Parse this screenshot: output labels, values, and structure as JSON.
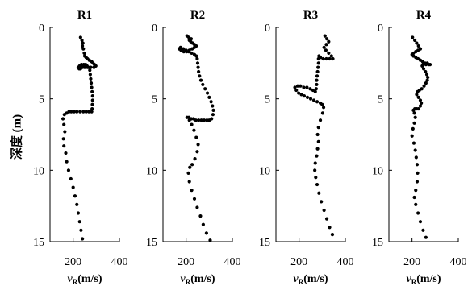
{
  "chart_data": {
    "type": "scatter",
    "ylabel": "深度 (m)",
    "xlabel_var": "v",
    "xlabel_sub": "R",
    "xlabel_unit": "(m/s)",
    "xlim": [
      100,
      400
    ],
    "ylim": [
      0,
      15
    ],
    "yticks": [
      0,
      5,
      10,
      15
    ],
    "xticks": [
      200,
      400
    ],
    "y_inverted": true,
    "marker_color": "#000000",
    "panels": [
      {
        "title": "R1",
        "points": [
          [
            232,
            0.7
          ],
          [
            238,
            0.9
          ],
          [
            242,
            1.1
          ],
          [
            240,
            1.3
          ],
          [
            244,
            1.5
          ],
          [
            248,
            1.8
          ],
          [
            250,
            2.0
          ],
          [
            256,
            2.1
          ],
          [
            262,
            2.2
          ],
          [
            270,
            2.3
          ],
          [
            280,
            2.4
          ],
          [
            286,
            2.5
          ],
          [
            292,
            2.6
          ],
          [
            298,
            2.7
          ],
          [
            290,
            2.8
          ],
          [
            276,
            2.8
          ],
          [
            262,
            2.8
          ],
          [
            250,
            2.8
          ],
          [
            240,
            2.8
          ],
          [
            232,
            2.9
          ],
          [
            226,
            2.9
          ],
          [
            222,
            2.8
          ],
          [
            228,
            2.7
          ],
          [
            236,
            2.6
          ],
          [
            246,
            2.6
          ],
          [
            254,
            2.6
          ],
          [
            260,
            2.7
          ],
          [
            266,
            2.8
          ],
          [
            272,
            3.0
          ],
          [
            274,
            3.3
          ],
          [
            276,
            3.6
          ],
          [
            278,
            3.9
          ],
          [
            280,
            4.2
          ],
          [
            282,
            4.5
          ],
          [
            284,
            4.8
          ],
          [
            284,
            5.1
          ],
          [
            283,
            5.4
          ],
          [
            282,
            5.7
          ],
          [
            280,
            5.9
          ],
          [
            268,
            5.9
          ],
          [
            256,
            5.9
          ],
          [
            244,
            5.9
          ],
          [
            230,
            5.9
          ],
          [
            216,
            5.9
          ],
          [
            204,
            5.9
          ],
          [
            192,
            5.9
          ],
          [
            182,
            5.9
          ],
          [
            172,
            6.0
          ],
          [
            162,
            6.1
          ],
          [
            156,
            6.4
          ],
          [
            160,
            6.8
          ],
          [
            164,
            7.3
          ],
          [
            158,
            7.8
          ],
          [
            160,
            8.3
          ],
          [
            168,
            8.8
          ],
          [
            172,
            9.4
          ],
          [
            180,
            10.0
          ],
          [
            190,
            10.6
          ],
          [
            200,
            11.2
          ],
          [
            208,
            11.8
          ],
          [
            216,
            12.4
          ],
          [
            222,
            13.0
          ],
          [
            228,
            13.6
          ],
          [
            234,
            14.2
          ],
          [
            240,
            14.8
          ]
        ]
      },
      {
        "title": "R2",
        "points": [
          [
            204,
            0.6
          ],
          [
            212,
            0.7
          ],
          [
            222,
            0.8
          ],
          [
            214,
            0.9
          ],
          [
            220,
            1.0
          ],
          [
            228,
            1.1
          ],
          [
            236,
            1.2
          ],
          [
            244,
            1.3
          ],
          [
            236,
            1.4
          ],
          [
            226,
            1.5
          ],
          [
            214,
            1.6
          ],
          [
            202,
            1.7
          ],
          [
            190,
            1.7
          ],
          [
            178,
            1.6
          ],
          [
            170,
            1.5
          ],
          [
            176,
            1.4
          ],
          [
            188,
            1.5
          ],
          [
            200,
            1.6
          ],
          [
            212,
            1.7
          ],
          [
            224,
            1.8
          ],
          [
            236,
            1.9
          ],
          [
            244,
            2.0
          ],
          [
            248,
            2.2
          ],
          [
            250,
            2.5
          ],
          [
            252,
            2.8
          ],
          [
            254,
            3.1
          ],
          [
            258,
            3.4
          ],
          [
            264,
            3.7
          ],
          [
            272,
            4.0
          ],
          [
            282,
            4.3
          ],
          [
            292,
            4.6
          ],
          [
            300,
            4.9
          ],
          [
            308,
            5.2
          ],
          [
            314,
            5.5
          ],
          [
            318,
            5.8
          ],
          [
            316,
            6.1
          ],
          [
            310,
            6.4
          ],
          [
            300,
            6.5
          ],
          [
            290,
            6.5
          ],
          [
            278,
            6.5
          ],
          [
            266,
            6.5
          ],
          [
            254,
            6.5
          ],
          [
            242,
            6.5
          ],
          [
            232,
            6.4
          ],
          [
            222,
            6.4
          ],
          [
            212,
            6.3
          ],
          [
            204,
            6.3
          ],
          [
            214,
            6.5
          ],
          [
            224,
            6.8
          ],
          [
            234,
            7.2
          ],
          [
            244,
            7.7
          ],
          [
            252,
            8.2
          ],
          [
            248,
            8.7
          ],
          [
            238,
            9.2
          ],
          [
            226,
            9.6
          ],
          [
            216,
            9.8
          ],
          [
            210,
            10.2
          ],
          [
            214,
            10.8
          ],
          [
            224,
            11.4
          ],
          [
            236,
            12.0
          ],
          [
            248,
            12.6
          ],
          [
            262,
            13.2
          ],
          [
            274,
            13.8
          ],
          [
            288,
            14.4
          ],
          [
            304,
            14.9
          ]
        ]
      },
      {
        "title": "R3",
        "points": [
          [
            312,
            0.6
          ],
          [
            320,
            0.8
          ],
          [
            328,
            1.0
          ],
          [
            318,
            1.2
          ],
          [
            308,
            1.4
          ],
          [
            316,
            1.6
          ],
          [
            328,
            1.8
          ],
          [
            340,
            2.0
          ],
          [
            346,
            2.2
          ],
          [
            332,
            2.2
          ],
          [
            318,
            2.2
          ],
          [
            304,
            2.2
          ],
          [
            292,
            2.1
          ],
          [
            286,
            2.0
          ],
          [
            284,
            2.2
          ],
          [
            284,
            2.5
          ],
          [
            282,
            2.8
          ],
          [
            280,
            3.1
          ],
          [
            278,
            3.4
          ],
          [
            276,
            3.7
          ],
          [
            276,
            4.0
          ],
          [
            274,
            4.3
          ],
          [
            270,
            4.5
          ],
          [
            260,
            4.4
          ],
          [
            248,
            4.3
          ],
          [
            234,
            4.2
          ],
          [
            220,
            4.2
          ],
          [
            206,
            4.1
          ],
          [
            194,
            4.1
          ],
          [
            182,
            4.2
          ],
          [
            188,
            4.4
          ],
          [
            198,
            4.6
          ],
          [
            210,
            4.7
          ],
          [
            222,
            4.8
          ],
          [
            236,
            4.9
          ],
          [
            250,
            5.0
          ],
          [
            264,
            5.1
          ],
          [
            278,
            5.2
          ],
          [
            292,
            5.3
          ],
          [
            300,
            5.4
          ],
          [
            306,
            5.6
          ],
          [
            302,
            6.0
          ],
          [
            292,
            6.5
          ],
          [
            284,
            7.0
          ],
          [
            280,
            7.5
          ],
          [
            284,
            8.0
          ],
          [
            280,
            8.5
          ],
          [
            276,
            9.0
          ],
          [
            270,
            9.5
          ],
          [
            268,
            10.0
          ],
          [
            272,
            10.5
          ],
          [
            278,
            11.0
          ],
          [
            286,
            11.6
          ],
          [
            296,
            12.2
          ],
          [
            308,
            12.8
          ],
          [
            320,
            13.4
          ],
          [
            332,
            14.0
          ],
          [
            344,
            14.5
          ]
        ]
      },
      {
        "title": "R4",
        "points": [
          [
            202,
            0.7
          ],
          [
            212,
            0.9
          ],
          [
            220,
            1.1
          ],
          [
            228,
            1.3
          ],
          [
            236,
            1.5
          ],
          [
            226,
            1.6
          ],
          [
            216,
            1.7
          ],
          [
            206,
            1.8
          ],
          [
            200,
            1.9
          ],
          [
            206,
            2.0
          ],
          [
            216,
            2.1
          ],
          [
            226,
            2.2
          ],
          [
            236,
            2.3
          ],
          [
            246,
            2.4
          ],
          [
            256,
            2.5
          ],
          [
            266,
            2.5
          ],
          [
            278,
            2.6
          ],
          [
            272,
            2.6
          ],
          [
            260,
            2.6
          ],
          [
            248,
            2.6
          ],
          [
            244,
            2.7
          ],
          [
            250,
            2.9
          ],
          [
            258,
            3.1
          ],
          [
            264,
            3.3
          ],
          [
            268,
            3.5
          ],
          [
            266,
            3.7
          ],
          [
            260,
            3.9
          ],
          [
            252,
            4.1
          ],
          [
            242,
            4.3
          ],
          [
            232,
            4.4
          ],
          [
            224,
            4.5
          ],
          [
            220,
            4.7
          ],
          [
            228,
            4.9
          ],
          [
            236,
            5.1
          ],
          [
            240,
            5.3
          ],
          [
            236,
            5.5
          ],
          [
            228,
            5.7
          ],
          [
            220,
            5.7
          ],
          [
            212,
            5.7
          ],
          [
            206,
            5.8
          ],
          [
            210,
            6.0
          ],
          [
            214,
            6.3
          ],
          [
            210,
            6.7
          ],
          [
            204,
            7.1
          ],
          [
            200,
            7.6
          ],
          [
            208,
            8.1
          ],
          [
            214,
            8.6
          ],
          [
            218,
            9.1
          ],
          [
            222,
            9.6
          ],
          [
            224,
            10.2
          ],
          [
            222,
            10.8
          ],
          [
            216,
            11.4
          ],
          [
            210,
            11.9
          ],
          [
            216,
            12.4
          ],
          [
            226,
            13.0
          ],
          [
            236,
            13.6
          ],
          [
            248,
            14.2
          ],
          [
            260,
            14.7
          ]
        ]
      }
    ]
  }
}
